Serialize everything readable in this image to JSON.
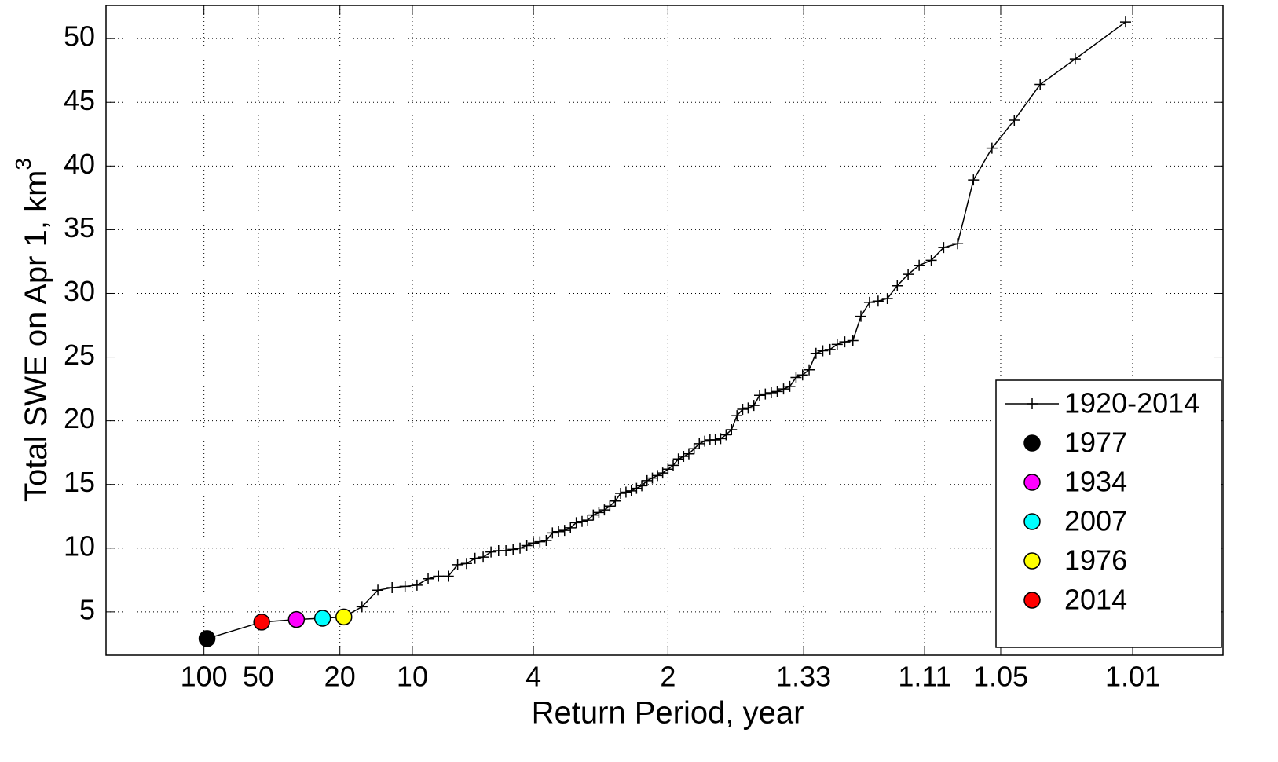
{
  "chart_data": {
    "type": "line",
    "x_scale": "normal-probability",
    "xlabel": "Return Period, year",
    "ylabel": "Total SWE on Apr 1, km",
    "ylabel_superscript": "3",
    "xlim": [
      413,
      1.0027
    ],
    "xticks": [
      100,
      50,
      20,
      10,
      4,
      2,
      1.33,
      1.11,
      1.05,
      1.01
    ],
    "ylim": [
      1.6,
      52.6
    ],
    "yticks": [
      5,
      10,
      15,
      20,
      25,
      30,
      35,
      40,
      45,
      50
    ],
    "grid": true,
    "legend": "lower right",
    "series": [
      {
        "name": "1920-2014",
        "color": "#000000",
        "marker": "+",
        "x": [
          96,
          48,
          32,
          24,
          19.2,
          16,
          13.714,
          12,
          10.667,
          9.6,
          8.727,
          8,
          7.385,
          6.857,
          6.4,
          6,
          5.647,
          5.333,
          5.053,
          4.8,
          4.571,
          4.364,
          4.174,
          4,
          3.84,
          3.692,
          3.556,
          3.429,
          3.31,
          3.2,
          3.097,
          3,
          2.909,
          2.824,
          2.743,
          2.667,
          2.595,
          2.526,
          2.462,
          2.4,
          2.341,
          2.286,
          2.233,
          2.182,
          2.133,
          2.087,
          2.043,
          2,
          1.959,
          1.92,
          1.882,
          1.846,
          1.811,
          1.778,
          1.745,
          1.714,
          1.684,
          1.655,
          1.627,
          1.6,
          1.574,
          1.548,
          1.524,
          1.5,
          1.477,
          1.455,
          1.433,
          1.412,
          1.391,
          1.371,
          1.352,
          1.333,
          1.315,
          1.297,
          1.28,
          1.263,
          1.247,
          1.231,
          1.215,
          1.2,
          1.185,
          1.171,
          1.157,
          1.143,
          1.129,
          1.116,
          1.103,
          1.091,
          1.079,
          1.067,
          1.055,
          1.043,
          1.032,
          1.021,
          1.011
        ],
        "values": [
          2.9,
          4.2,
          4.4,
          4.5,
          4.6,
          5.4,
          6.7,
          6.9,
          7.0,
          7.1,
          7.6,
          7.8,
          7.8,
          8.7,
          8.8,
          9.2,
          9.3,
          9.7,
          9.8,
          9.8,
          9.9,
          10.0,
          10.2,
          10.4,
          10.5,
          10.6,
          11.2,
          11.3,
          11.4,
          11.6,
          12.0,
          12.1,
          12.2,
          12.6,
          12.8,
          13.0,
          13.3,
          13.7,
          14.3,
          14.4,
          14.5,
          14.7,
          14.9,
          15.3,
          15.5,
          15.7,
          15.9,
          16.2,
          16.5,
          17.0,
          17.2,
          17.4,
          17.8,
          18.2,
          18.4,
          18.5,
          18.5,
          18.6,
          18.9,
          19.3,
          20.4,
          20.9,
          21.0,
          21.2,
          22.0,
          22.1,
          22.2,
          22.3,
          22.5,
          22.7,
          23.4,
          23.6,
          24.0,
          25.3,
          25.5,
          25.6,
          26.0,
          26.2,
          26.3,
          28.2,
          29.3,
          29.4,
          29.6,
          30.6,
          31.5,
          32.2,
          32.6,
          33.6,
          33.9,
          38.9,
          41.4,
          43.6,
          46.4,
          48.4,
          51.3
        ]
      },
      {
        "name": "1977",
        "color": "#000000",
        "marker": "o",
        "x": [
          96
        ],
        "values": [
          2.9
        ]
      },
      {
        "name": "1934",
        "color": "#ff00ff",
        "marker": "o",
        "x": [
          32
        ],
        "values": [
          4.4
        ]
      },
      {
        "name": "2007",
        "color": "#00ffff",
        "marker": "o",
        "x": [
          24
        ],
        "values": [
          4.5
        ]
      },
      {
        "name": "1976",
        "color": "#ffff00",
        "marker": "o",
        "x": [
          19.2
        ],
        "values": [
          4.6
        ]
      },
      {
        "name": "2014",
        "color": "#ff0000",
        "marker": "o",
        "x": [
          48
        ],
        "values": [
          4.2
        ]
      }
    ]
  }
}
